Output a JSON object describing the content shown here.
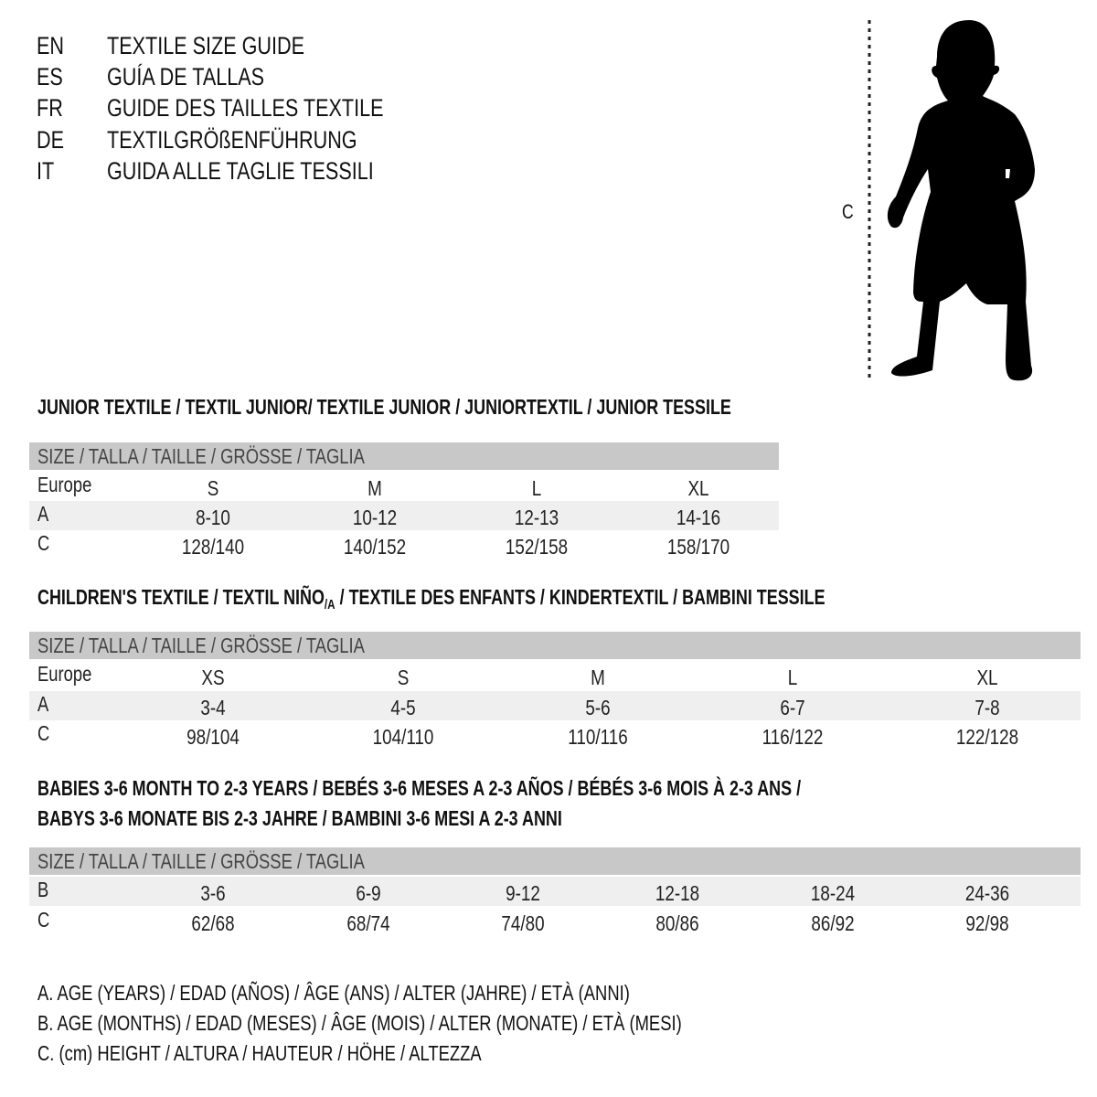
{
  "languages": [
    {
      "code": "EN",
      "title": "TEXTILE SIZE GUIDE"
    },
    {
      "code": "ES",
      "title": "GUÍA DE TALLAS"
    },
    {
      "code": "FR",
      "title": "GUIDE DES TAILLES TEXTILE"
    },
    {
      "code": "DE",
      "title": "TEXTILGRÖßENFÜHRUNG"
    },
    {
      "code": "IT",
      "title": "GUIDA ALLE TAGLIE TESSILI"
    }
  ],
  "figure": {
    "measure_label": "C",
    "icon": "child-silhouette-icon"
  },
  "size_header": "SIZE / TALLA / TAILLE / GRÖSSE / TAGLIA",
  "junior": {
    "title": "JUNIOR TEXTILE / TEXTIL JUNIOR/ TEXTILE JUNIOR / JUNIORTEXTIL / JUNIOR TESSILE",
    "rows": [
      {
        "label": "Europe",
        "values": [
          "S",
          "M",
          "L",
          "XL"
        ]
      },
      {
        "label": "A",
        "values": [
          "8-10",
          "10-12",
          "12-13",
          "14-16"
        ]
      },
      {
        "label": "C",
        "values": [
          "128/140",
          "140/152",
          "152/158",
          "158/170"
        ]
      }
    ]
  },
  "children": {
    "title_pre": "CHILDREN'S TEXTILE / TEXTIL NIÑO",
    "title_sub": "/A",
    "title_post": " / TEXTILE DES ENFANTS / KINDERTEXTIL / BAMBINI TESSILE",
    "rows": [
      {
        "label": "Europe",
        "values": [
          "XS",
          "S",
          "M",
          "L",
          "XL"
        ]
      },
      {
        "label": "A",
        "values": [
          "3-4",
          "4-5",
          "5-6",
          "6-7",
          "7-8"
        ]
      },
      {
        "label": "C",
        "values": [
          "98/104",
          "104/110",
          "110/116",
          "116/122",
          "122/128"
        ]
      }
    ]
  },
  "babies": {
    "title_line1": "BABIES 3-6 MONTH TO 2-3 YEARS / BEBÉS 3-6 MESES A 2-3 AÑOS / BÉBÉS 3-6 MOIS À 2-3 ANS /",
    "title_line2": "BABYS 3-6 MONATE BIS 2-3 JAHRE / BAMBINI 3-6 MESI A 2-3 ANNI",
    "rows": [
      {
        "label": "B",
        "values": [
          "3-6",
          "6-9",
          "9-12",
          "12-18",
          "18-24",
          "24-36"
        ]
      },
      {
        "label": "C",
        "values": [
          "62/68",
          "68/74",
          "74/80",
          "80/86",
          "86/92",
          "92/98"
        ]
      }
    ]
  },
  "legend": [
    "A. AGE (YEARS) / EDAD (AÑOS) / ÂGE (ANS) / ALTER (JAHRE) / ETÀ (ANNI)",
    "B. AGE (MONTHS) / EDAD (MESES) / ÂGE (MOIS) / ALTER (MONATE) / ETÀ (MESI)",
    "C. (cm) HEIGHT / ALTURA / HAUTEUR / HÖHE / ALTEZZA"
  ],
  "colors": {
    "header_bg": "#c8c8c8",
    "row_shade": "#efefef",
    "text": "#111111"
  }
}
